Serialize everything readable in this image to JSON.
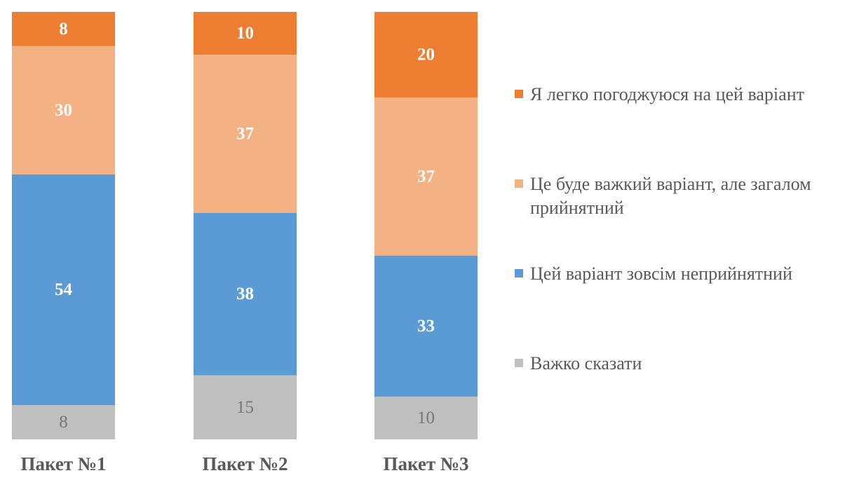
{
  "chart_data": {
    "type": "bar",
    "stacked": true,
    "normalized_to_100": true,
    "categories": [
      "Пакет №1",
      "Пакет №2",
      "Пакет №3"
    ],
    "series": [
      {
        "name": "Важко сказати",
        "color": "#BFBFBF",
        "label_color": "#767676",
        "label_bold": false,
        "values": [
          8,
          15,
          10
        ]
      },
      {
        "name": "Цей варіант зовсім неприйнятний",
        "color": "#5B9BD5",
        "label_color": "#FFFFFF",
        "label_bold": true,
        "values": [
          54,
          38,
          33
        ]
      },
      {
        "name": "Це буде важкий варіант, але загалом прийнятний",
        "color": "#F4B183",
        "label_color": "#FFFFFF",
        "label_bold": true,
        "values": [
          30,
          37,
          37
        ]
      },
      {
        "name": "Я легко погоджуюся на цей варіант",
        "color": "#ED7D31",
        "label_color": "#FFFFFF",
        "label_bold": true,
        "values": [
          8,
          10,
          20
        ]
      }
    ],
    "legend_order": [
      3,
      2,
      1,
      0
    ],
    "legend_position": "right",
    "grid": false
  }
}
